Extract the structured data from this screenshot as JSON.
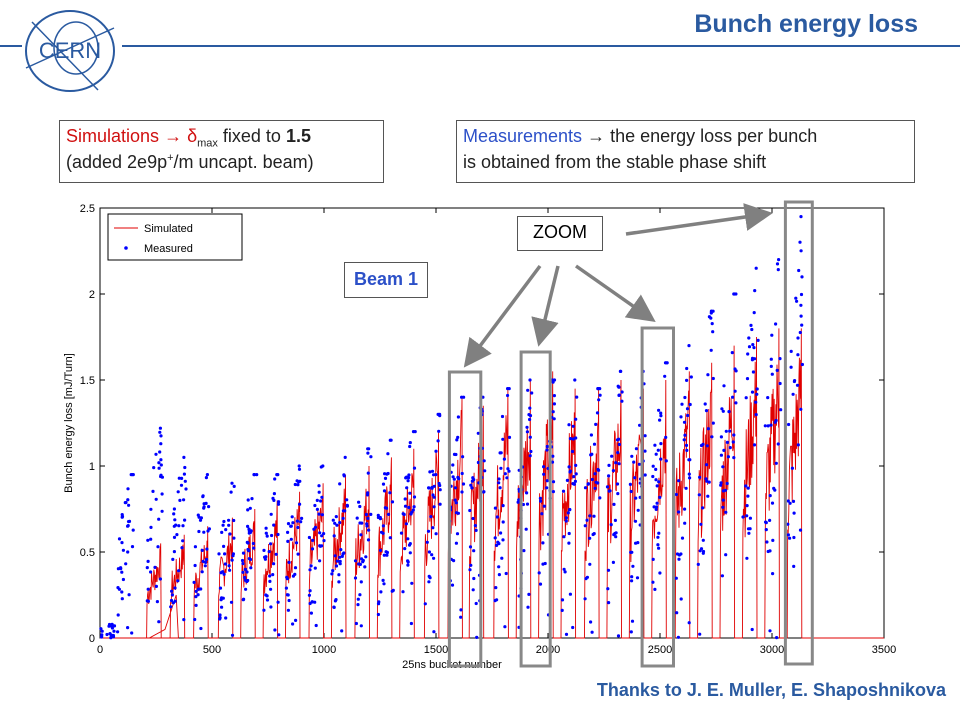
{
  "slide": {
    "title": "Bunch energy loss",
    "logo_text": "CERN",
    "sim_box": {
      "line1_red": "Simulations",
      "arrow": "→",
      "delta": "δ",
      "delta_sub": "max",
      "line1_rest": " fixed to ",
      "value": "1.5",
      "line2": "(added 2e9p",
      "line2_sup": "+",
      "line2_rest": "/m uncapt. beam)"
    },
    "meas_box": {
      "line1_blue": "Measurements",
      "arrow": "→",
      "line1_rest": " the energy loss per bunch",
      "line2": "is obtained from the stable phase shift"
    },
    "zoom_label": "ZOOM",
    "beam_label": "Beam 1",
    "thanks": "Thanks to J. E. Muller, E. Shaposhnikova",
    "colors": {
      "accent": "#2a5aa0",
      "simulated": "#e00000",
      "measured": "#0000ff",
      "zoom_rect": "#888888"
    }
  },
  "chart_data": {
    "type": "line",
    "xlabel": "25ns bucket number",
    "ylabel": "Bunch energy loss [mJ/Turn]",
    "xlim": [
      0,
      3500
    ],
    "ylim": [
      0,
      2.5
    ],
    "xticks": [
      "0",
      "500",
      "1000",
      "1500",
      "2000",
      "2500",
      "3000",
      "3500"
    ],
    "yticks": [
      "0",
      "0.5",
      "1",
      "1.5",
      "2",
      "2.5"
    ],
    "legend": {
      "position": "top-left",
      "entries": [
        "Simulated",
        "Measured"
      ]
    },
    "series": [
      {
        "name": "Simulated",
        "style": "red line",
        "trains_start": [
          210,
          315,
          420,
          530,
          630,
          730,
          830,
          935,
          1035,
          1140,
          1240,
          1340,
          1450,
          1555,
          1650,
          1760,
          1860,
          1960,
          2060,
          2165,
          2265,
          2365,
          2465,
          2570,
          2670,
          2770,
          2870,
          2970,
          3070
        ],
        "trains_peak": [
          0.55,
          0.6,
          0.65,
          0.7,
          0.75,
          0.8,
          0.85,
          0.9,
          0.95,
          1.0,
          1.05,
          1.1,
          1.2,
          1.4,
          1.35,
          1.45,
          1.5,
          1.55,
          1.45,
          1.45,
          1.5,
          1.45,
          1.5,
          1.55,
          1.6,
          1.7,
          1.75,
          1.8,
          1.8
        ],
        "uncaptured_ramp": [
          [
            220,
            0.0
          ],
          [
            290,
            0.05
          ],
          [
            340,
            0.25
          ]
        ]
      },
      {
        "name": "Measured",
        "style": "blue dots",
        "trains_start": [
          80,
          210,
          315,
          420,
          530,
          630,
          730,
          830,
          935,
          1035,
          1140,
          1240,
          1340,
          1450,
          1555,
          1650,
          1760,
          1860,
          1960,
          2060,
          2165,
          2265,
          2365,
          2465,
          2570,
          2670,
          2770,
          2870,
          2970,
          3070
        ],
        "trains_peak": [
          0.95,
          1.22,
          1.05,
          0.95,
          0.9,
          0.95,
          0.95,
          1.0,
          1.0,
          1.05,
          1.1,
          1.15,
          1.2,
          1.3,
          1.4,
          1.4,
          1.45,
          1.5,
          1.5,
          1.5,
          1.45,
          1.55,
          1.55,
          1.6,
          1.7,
          1.9,
          2.0,
          2.15,
          2.2,
          2.45
        ]
      }
    ],
    "zoom_regions_x": [
      [
        1560,
        1700
      ],
      [
        1880,
        2010
      ],
      [
        2420,
        2560
      ],
      [
        3060,
        3180
      ]
    ]
  }
}
